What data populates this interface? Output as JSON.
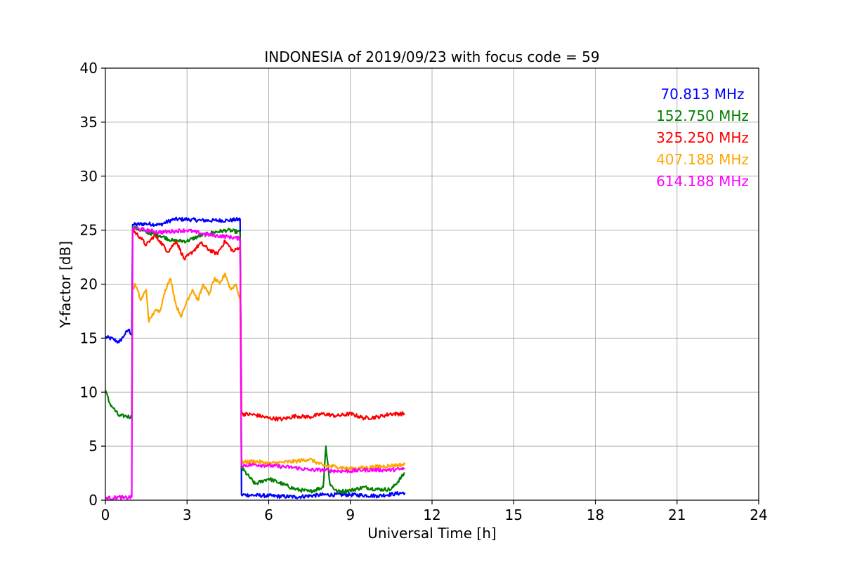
{
  "chart_data": {
    "type": "line",
    "title": "INDONESIA of 2019/09/23 with focus code = 59",
    "xlabel": "Universal Time [h]",
    "ylabel": "Y-factor [dB]",
    "xlim": [
      0,
      24
    ],
    "ylim": [
      0,
      40
    ],
    "xticks": [
      "0",
      "3",
      "6",
      "9",
      "12",
      "15",
      "18",
      "21",
      "24"
    ],
    "yticks": [
      "0",
      "5",
      "10",
      "15",
      "20",
      "25",
      "30",
      "35",
      "40"
    ],
    "grid": true,
    "legend_position": "top-right",
    "series": [
      {
        "name": "70.813 MHz",
        "color": "#0000ff",
        "points": [
          [
            0,
            15.1
          ],
          [
            0.3,
            14.9
          ],
          [
            0.5,
            14.6
          ],
          [
            0.7,
            15.3
          ],
          [
            0.85,
            15.8
          ],
          [
            0.97,
            15.3
          ],
          [
            1.0,
            25.5
          ],
          [
            1.5,
            25.6
          ],
          [
            2.0,
            25.5
          ],
          [
            2.5,
            26.0
          ],
          [
            3.0,
            26.0
          ],
          [
            3.5,
            25.9
          ],
          [
            4.0,
            25.9
          ],
          [
            4.5,
            25.9
          ],
          [
            4.95,
            26.0
          ],
          [
            5.0,
            0.5
          ],
          [
            6.0,
            0.4
          ],
          [
            7.0,
            0.3
          ],
          [
            8.0,
            0.5
          ],
          [
            9.0,
            0.5
          ],
          [
            10.0,
            0.4
          ],
          [
            11.0,
            0.7
          ]
        ]
      },
      {
        "name": "152.750 MHz",
        "color": "#008000",
        "points": [
          [
            0,
            10.2
          ],
          [
            0.15,
            9.0
          ],
          [
            0.3,
            8.5
          ],
          [
            0.5,
            7.8
          ],
          [
            0.7,
            7.8
          ],
          [
            0.97,
            7.7
          ],
          [
            1.0,
            25.3
          ],
          [
            1.5,
            24.8
          ],
          [
            2.0,
            24.5
          ],
          [
            2.5,
            24.0
          ],
          [
            3.0,
            24.0
          ],
          [
            3.5,
            24.5
          ],
          [
            4.0,
            24.8
          ],
          [
            4.5,
            25.0
          ],
          [
            4.95,
            24.8
          ],
          [
            5.0,
            3.0
          ],
          [
            5.5,
            1.5
          ],
          [
            6.0,
            2.0
          ],
          [
            6.5,
            1.5
          ],
          [
            7.0,
            1.0
          ],
          [
            7.5,
            0.8
          ],
          [
            8.0,
            1.2
          ],
          [
            8.1,
            5.0
          ],
          [
            8.25,
            1.5
          ],
          [
            8.5,
            0.8
          ],
          [
            9.0,
            0.9
          ],
          [
            9.5,
            1.2
          ],
          [
            10.0,
            1.0
          ],
          [
            10.5,
            1.0
          ],
          [
            11.0,
            2.5
          ]
        ]
      },
      {
        "name": "325.250 MHz",
        "color": "#ff0000",
        "points": [
          [
            1.0,
            25.0
          ],
          [
            1.3,
            24.3
          ],
          [
            1.5,
            23.6
          ],
          [
            1.8,
            24.5
          ],
          [
            2.0,
            24.0
          ],
          [
            2.3,
            23.0
          ],
          [
            2.6,
            24.0
          ],
          [
            2.9,
            22.3
          ],
          [
            3.2,
            23.0
          ],
          [
            3.5,
            23.8
          ],
          [
            3.8,
            23.2
          ],
          [
            4.1,
            22.8
          ],
          [
            4.4,
            24.0
          ],
          [
            4.7,
            23.0
          ],
          [
            4.95,
            23.5
          ],
          [
            5.0,
            8.0
          ],
          [
            5.5,
            7.9
          ],
          [
            6.0,
            7.6
          ],
          [
            6.5,
            7.5
          ],
          [
            7.0,
            7.8
          ],
          [
            7.5,
            7.7
          ],
          [
            8.0,
            8.0
          ],
          [
            8.5,
            7.8
          ],
          [
            9.0,
            8.0
          ],
          [
            9.5,
            7.6
          ],
          [
            10.0,
            7.7
          ],
          [
            10.5,
            8.0
          ],
          [
            11.0,
            8.0
          ]
        ]
      },
      {
        "name": "407.188 MHz",
        "color": "#ffa500",
        "points": [
          [
            1.0,
            19.5
          ],
          [
            1.1,
            20.0
          ],
          [
            1.3,
            18.5
          ],
          [
            1.5,
            19.5
          ],
          [
            1.6,
            16.5
          ],
          [
            1.8,
            17.5
          ],
          [
            2.0,
            17.5
          ],
          [
            2.2,
            19.5
          ],
          [
            2.4,
            20.5
          ],
          [
            2.6,
            18.0
          ],
          [
            2.8,
            17.0
          ],
          [
            3.0,
            18.5
          ],
          [
            3.2,
            19.5
          ],
          [
            3.4,
            18.5
          ],
          [
            3.6,
            20.0
          ],
          [
            3.8,
            19.0
          ],
          [
            4.0,
            20.5
          ],
          [
            4.2,
            20.0
          ],
          [
            4.4,
            21.0
          ],
          [
            4.6,
            19.5
          ],
          [
            4.8,
            20.0
          ],
          [
            4.95,
            18.5
          ],
          [
            5.0,
            3.5
          ],
          [
            5.5,
            3.6
          ],
          [
            6.0,
            3.4
          ],
          [
            6.5,
            3.5
          ],
          [
            7.0,
            3.6
          ],
          [
            7.5,
            3.8
          ],
          [
            8.0,
            3.2
          ],
          [
            8.5,
            3.1
          ],
          [
            9.0,
            2.9
          ],
          [
            9.5,
            3.0
          ],
          [
            10.0,
            3.1
          ],
          [
            10.5,
            3.2
          ],
          [
            11.0,
            3.3
          ]
        ]
      },
      {
        "name": "614.188 MHz",
        "color": "#ff00ff",
        "points": [
          [
            0,
            0.2
          ],
          [
            0.3,
            0.2
          ],
          [
            0.5,
            0.3
          ],
          [
            0.7,
            0.2
          ],
          [
            0.97,
            0.3
          ],
          [
            1.0,
            25.2
          ],
          [
            1.5,
            25.0
          ],
          [
            2.0,
            24.8
          ],
          [
            2.5,
            24.9
          ],
          [
            3.0,
            25.0
          ],
          [
            3.5,
            24.7
          ],
          [
            4.0,
            24.5
          ],
          [
            4.5,
            24.4
          ],
          [
            4.95,
            24.2
          ],
          [
            5.0,
            3.2
          ],
          [
            5.5,
            3.3
          ],
          [
            6.0,
            3.2
          ],
          [
            6.5,
            3.1
          ],
          [
            7.0,
            3.0
          ],
          [
            7.5,
            2.8
          ],
          [
            8.0,
            2.8
          ],
          [
            8.5,
            2.7
          ],
          [
            9.0,
            2.7
          ],
          [
            9.5,
            2.8
          ],
          [
            10.0,
            2.8
          ],
          [
            10.5,
            2.8
          ],
          [
            11.0,
            2.9
          ]
        ]
      }
    ]
  }
}
